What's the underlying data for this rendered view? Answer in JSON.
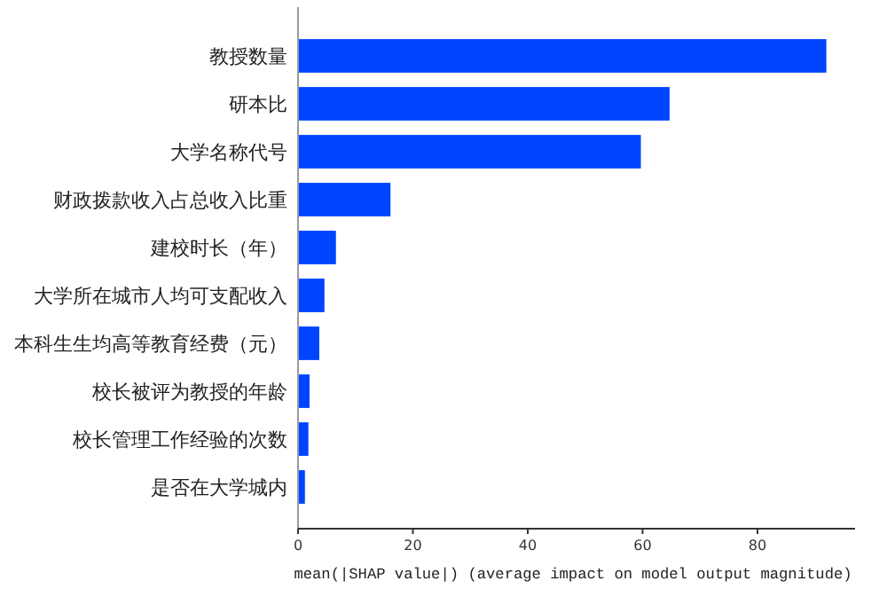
{
  "chart_data": {
    "type": "bar",
    "orientation": "horizontal",
    "xlabel": "mean(|SHAP value|) (average impact on model output magnitude)",
    "categories": [
      "教授数量",
      "研本比",
      "大学名称代号",
      "财政拨款收入占总收入比重",
      "建校时长（年）",
      "大学所在城市人均可支配收入",
      "本科生生均高等教育经费（元）",
      "校长被评为教授的年龄",
      "校长管理工作经验的次数",
      "是否在大学城内"
    ],
    "values": [
      92.0,
      64.7,
      59.7,
      16.1,
      6.6,
      4.6,
      3.7,
      2.0,
      1.8,
      1.2
    ],
    "color": "#0044ff",
    "xlim": [
      0,
      97
    ],
    "xticks": [
      0,
      20,
      40,
      60,
      80
    ],
    "grid": false
  }
}
